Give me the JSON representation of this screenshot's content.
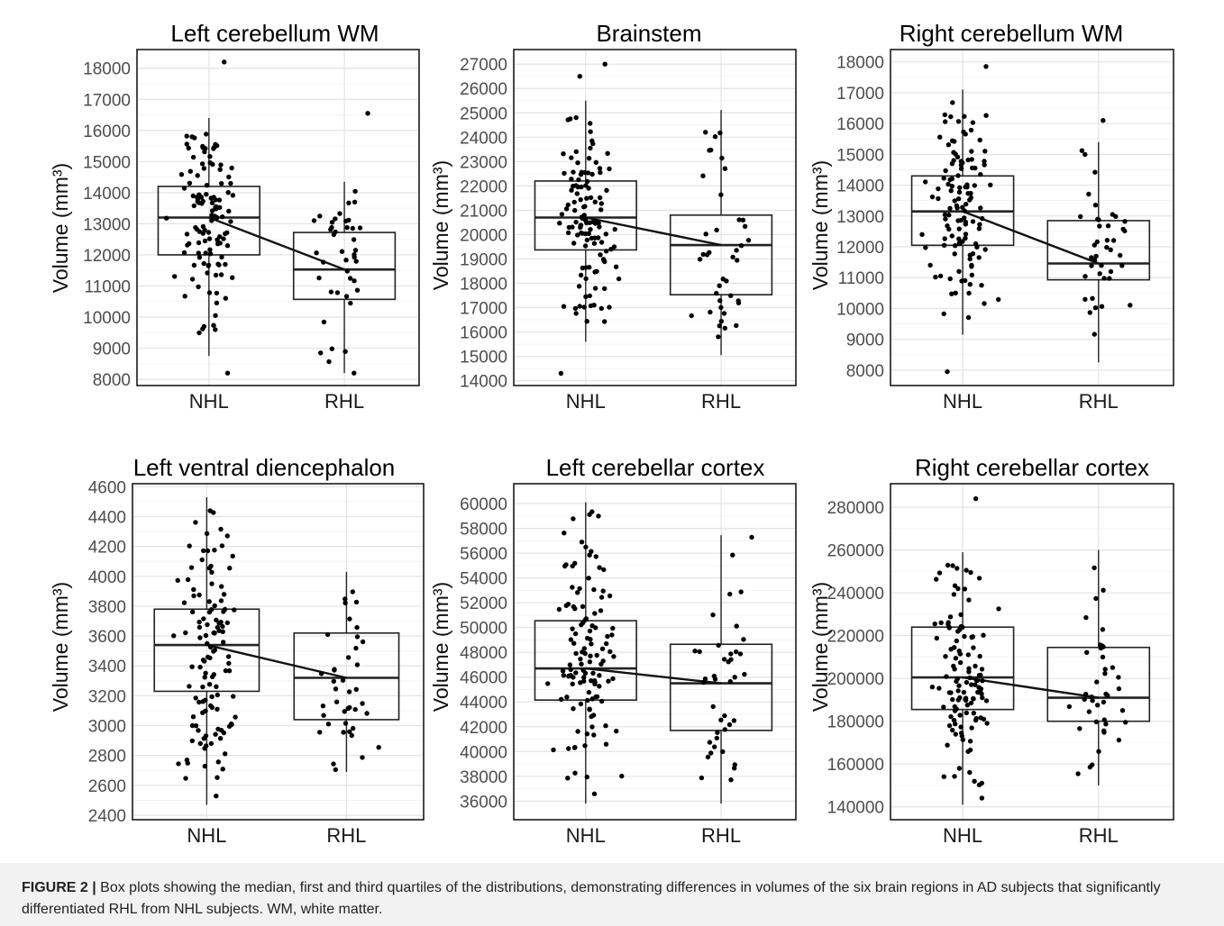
{
  "figure": {
    "caption_label": "FIGURE 2 |",
    "caption_text": " Box plots showing the median, first and third quartiles of the distributions, demonstrating differences in volumes of the six brain regions in AD subjects that significantly differentiated RHL from NHL subjects. WM, white matter."
  },
  "chart_data": [
    {
      "type": "box",
      "title": "Left cerebellum WM",
      "ylabel": "Volume (mm³)",
      "categories": [
        "NHL",
        "RHL"
      ],
      "ylim": [
        7800,
        18600
      ],
      "yticks": [
        8000,
        9000,
        10000,
        11000,
        12000,
        13000,
        14000,
        15000,
        16000,
        17000,
        18000
      ],
      "boxes": [
        {
          "name": "NHL",
          "whisker_low": 8750,
          "q1": 12000,
          "median": 13200,
          "q3": 14200,
          "whisker_high": 16400,
          "n": 120,
          "outliers": [
            8200,
            18200
          ]
        },
        {
          "name": "RHL",
          "whisker_low": 8200,
          "q1": 10570,
          "median": 11530,
          "q3": 12720,
          "whisker_high": 14350,
          "n": 40,
          "outliers": [
            16550,
            8200
          ]
        }
      ],
      "grid": true
    },
    {
      "type": "box",
      "title": "Brainstem",
      "ylabel": "Volume (mm³)",
      "categories": [
        "NHL",
        "RHL"
      ],
      "ylim": [
        13800,
        27600
      ],
      "yticks": [
        14000,
        15000,
        16000,
        17000,
        18000,
        19000,
        20000,
        21000,
        22000,
        23000,
        24000,
        25000,
        26000,
        27000
      ],
      "boxes": [
        {
          "name": "NHL",
          "whisker_low": 15600,
          "q1": 19370,
          "median": 20700,
          "q3": 22200,
          "whisker_high": 25500,
          "n": 120,
          "outliers": [
            14300,
            27000,
            26500
          ]
        },
        {
          "name": "RHL",
          "whisker_low": 15050,
          "q1": 17530,
          "median": 19570,
          "q3": 20800,
          "whisker_high": 25120,
          "n": 40,
          "outliers": []
        }
      ],
      "grid": true
    },
    {
      "type": "box",
      "title": "Right cerebellum WM",
      "ylabel": "Volume (mm³)",
      "categories": [
        "NHL",
        "RHL"
      ],
      "ylim": [
        7500,
        18400
      ],
      "yticks": [
        8000,
        9000,
        10000,
        11000,
        12000,
        13000,
        14000,
        15000,
        16000,
        17000,
        18000
      ],
      "boxes": [
        {
          "name": "NHL",
          "whisker_low": 9150,
          "q1": 12050,
          "median": 13150,
          "q3": 14300,
          "whisker_high": 17100,
          "n": 120,
          "outliers": [
            7950,
            17850
          ]
        },
        {
          "name": "RHL",
          "whisker_low": 8250,
          "q1": 10930,
          "median": 11460,
          "q3": 12850,
          "whisker_high": 15400,
          "n": 40,
          "outliers": [
            16100
          ]
        }
      ],
      "grid": true
    },
    {
      "type": "box",
      "title": "Left ventral diencephalon",
      "ylabel": "Volume (mm³)",
      "categories": [
        "NHL",
        "RHL"
      ],
      "ylim": [
        2370,
        4620
      ],
      "yticks": [
        2400,
        2600,
        2800,
        3000,
        3200,
        3400,
        3600,
        3800,
        4000,
        4200,
        4400,
        4600
      ],
      "boxes": [
        {
          "name": "NHL",
          "whisker_low": 2470,
          "q1": 3230,
          "median": 3540,
          "q3": 3780,
          "whisker_high": 4530,
          "n": 120,
          "outliers": []
        },
        {
          "name": "RHL",
          "whisker_low": 2690,
          "q1": 3040,
          "median": 3320,
          "q3": 3620,
          "whisker_high": 4030,
          "n": 40,
          "outliers": []
        }
      ],
      "grid": true
    },
    {
      "type": "box",
      "title": "Left cerebellar cortex",
      "ylabel": "Volume (mm³)",
      "categories": [
        "NHL",
        "RHL"
      ],
      "ylim": [
        34500,
        61600
      ],
      "yticks": [
        36000,
        38000,
        40000,
        42000,
        44000,
        46000,
        48000,
        50000,
        52000,
        54000,
        56000,
        58000,
        60000
      ],
      "boxes": [
        {
          "name": "NHL",
          "whisker_low": 35800,
          "q1": 44150,
          "median": 46700,
          "q3": 50550,
          "whisker_high": 60100,
          "n": 120,
          "outliers": []
        },
        {
          "name": "RHL",
          "whisker_low": 35800,
          "q1": 41700,
          "median": 45500,
          "q3": 48650,
          "whisker_high": 57450,
          "n": 40,
          "outliers": []
        }
      ],
      "grid": true
    },
    {
      "type": "box",
      "title": "Right cerebellar cortex",
      "ylabel": "Volume (mm³)",
      "categories": [
        "NHL",
        "RHL"
      ],
      "ylim": [
        134000,
        291000
      ],
      "yticks": [
        140000,
        160000,
        180000,
        200000,
        220000,
        240000,
        260000,
        280000
      ],
      "boxes": [
        {
          "name": "NHL",
          "whisker_low": 141000,
          "q1": 185500,
          "median": 200500,
          "q3": 224000,
          "whisker_high": 259000,
          "n": 120,
          "outliers": [
            284000
          ]
        },
        {
          "name": "RHL",
          "whisker_low": 150000,
          "q1": 180000,
          "median": 191000,
          "q3": 214500,
          "whisker_high": 260000,
          "n": 40,
          "outliers": []
        }
      ],
      "grid": true
    }
  ]
}
